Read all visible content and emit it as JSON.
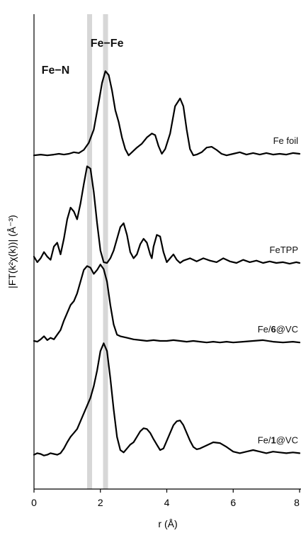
{
  "chart_data": {
    "type": "line",
    "xlabel": "r (Å)",
    "ylabel": "|FT(k²χ(k))| (Å⁻³)",
    "xlim": [
      0,
      8
    ],
    "xticks": [
      0,
      2,
      4,
      6,
      8
    ],
    "grid": false,
    "legend": "none",
    "bands": [
      {
        "x0": 1.6,
        "x1": 1.75
      },
      {
        "x0": 2.08,
        "x1": 2.23
      }
    ],
    "annotations": [
      {
        "text": "Fe−N",
        "x": 0.65
      },
      {
        "text": "Fe−Fe",
        "x": 2.2
      }
    ],
    "series": [
      {
        "name": "Fe foil",
        "offset": 4.26,
        "points": [
          [
            0.0,
            0.02
          ],
          [
            0.2,
            0.03
          ],
          [
            0.4,
            0.02
          ],
          [
            0.6,
            0.03
          ],
          [
            0.75,
            0.04
          ],
          [
            0.9,
            0.03
          ],
          [
            1.05,
            0.04
          ],
          [
            1.2,
            0.06
          ],
          [
            1.35,
            0.05
          ],
          [
            1.5,
            0.09
          ],
          [
            1.65,
            0.18
          ],
          [
            1.8,
            0.35
          ],
          [
            1.95,
            0.7
          ],
          [
            2.05,
            0.95
          ],
          [
            2.15,
            1.1
          ],
          [
            2.25,
            1.05
          ],
          [
            2.35,
            0.85
          ],
          [
            2.45,
            0.6
          ],
          [
            2.55,
            0.45
          ],
          [
            2.65,
            0.25
          ],
          [
            2.75,
            0.1
          ],
          [
            2.85,
            0.02
          ],
          [
            2.95,
            0.06
          ],
          [
            3.1,
            0.12
          ],
          [
            3.25,
            0.17
          ],
          [
            3.4,
            0.25
          ],
          [
            3.55,
            0.3
          ],
          [
            3.65,
            0.28
          ],
          [
            3.75,
            0.14
          ],
          [
            3.85,
            0.04
          ],
          [
            3.95,
            0.1
          ],
          [
            4.1,
            0.3
          ],
          [
            4.25,
            0.65
          ],
          [
            4.4,
            0.75
          ],
          [
            4.5,
            0.65
          ],
          [
            4.6,
            0.35
          ],
          [
            4.7,
            0.1
          ],
          [
            4.8,
            0.02
          ],
          [
            4.9,
            0.03
          ],
          [
            5.05,
            0.06
          ],
          [
            5.2,
            0.12
          ],
          [
            5.35,
            0.13
          ],
          [
            5.5,
            0.09
          ],
          [
            5.65,
            0.04
          ],
          [
            5.8,
            0.02
          ],
          [
            6.0,
            0.04
          ],
          [
            6.2,
            0.06
          ],
          [
            6.4,
            0.03
          ],
          [
            6.6,
            0.05
          ],
          [
            6.8,
            0.03
          ],
          [
            7.0,
            0.05
          ],
          [
            7.2,
            0.03
          ],
          [
            7.4,
            0.04
          ],
          [
            7.6,
            0.03
          ],
          [
            7.8,
            0.05
          ],
          [
            8.0,
            0.04
          ]
        ]
      },
      {
        "name": "FeTPP",
        "offset": 2.86,
        "points": [
          [
            0.0,
            0.12
          ],
          [
            0.1,
            0.05
          ],
          [
            0.2,
            0.1
          ],
          [
            0.3,
            0.18
          ],
          [
            0.4,
            0.12
          ],
          [
            0.5,
            0.08
          ],
          [
            0.6,
            0.25
          ],
          [
            0.7,
            0.3
          ],
          [
            0.8,
            0.15
          ],
          [
            0.9,
            0.35
          ],
          [
            1.0,
            0.6
          ],
          [
            1.1,
            0.75
          ],
          [
            1.2,
            0.7
          ],
          [
            1.3,
            0.6
          ],
          [
            1.4,
            0.8
          ],
          [
            1.5,
            1.05
          ],
          [
            1.6,
            1.28
          ],
          [
            1.7,
            1.25
          ],
          [
            1.8,
            0.95
          ],
          [
            1.9,
            0.55
          ],
          [
            2.0,
            0.2
          ],
          [
            2.1,
            0.05
          ],
          [
            2.2,
            0.04
          ],
          [
            2.3,
            0.1
          ],
          [
            2.4,
            0.2
          ],
          [
            2.5,
            0.35
          ],
          [
            2.6,
            0.5
          ],
          [
            2.7,
            0.55
          ],
          [
            2.8,
            0.4
          ],
          [
            2.9,
            0.18
          ],
          [
            3.0,
            0.1
          ],
          [
            3.1,
            0.15
          ],
          [
            3.2,
            0.28
          ],
          [
            3.3,
            0.35
          ],
          [
            3.4,
            0.3
          ],
          [
            3.5,
            0.15
          ],
          [
            3.55,
            0.1
          ],
          [
            3.6,
            0.25
          ],
          [
            3.7,
            0.4
          ],
          [
            3.8,
            0.38
          ],
          [
            3.9,
            0.18
          ],
          [
            4.0,
            0.05
          ],
          [
            4.1,
            0.1
          ],
          [
            4.2,
            0.15
          ],
          [
            4.3,
            0.08
          ],
          [
            4.4,
            0.04
          ],
          [
            4.5,
            0.07
          ],
          [
            4.7,
            0.1
          ],
          [
            4.9,
            0.06
          ],
          [
            5.1,
            0.1
          ],
          [
            5.3,
            0.07
          ],
          [
            5.5,
            0.05
          ],
          [
            5.7,
            0.1
          ],
          [
            5.9,
            0.06
          ],
          [
            6.1,
            0.04
          ],
          [
            6.3,
            0.08
          ],
          [
            6.5,
            0.05
          ],
          [
            6.7,
            0.07
          ],
          [
            6.9,
            0.04
          ],
          [
            7.1,
            0.06
          ],
          [
            7.3,
            0.04
          ],
          [
            7.5,
            0.05
          ],
          [
            7.7,
            0.03
          ],
          [
            7.9,
            0.05
          ],
          [
            8.0,
            0.04
          ]
        ]
      },
      {
        "name": "Fe/6@VC",
        "name_parts": [
          "Fe/",
          "6",
          "@VC"
        ],
        "offset": 1.86,
        "points": [
          [
            0.0,
            0.04
          ],
          [
            0.1,
            0.03
          ],
          [
            0.2,
            0.06
          ],
          [
            0.3,
            0.1
          ],
          [
            0.4,
            0.05
          ],
          [
            0.5,
            0.08
          ],
          [
            0.6,
            0.06
          ],
          [
            0.7,
            0.12
          ],
          [
            0.8,
            0.18
          ],
          [
            0.9,
            0.3
          ],
          [
            1.0,
            0.4
          ],
          [
            1.1,
            0.5
          ],
          [
            1.2,
            0.55
          ],
          [
            1.3,
            0.65
          ],
          [
            1.4,
            0.8
          ],
          [
            1.5,
            0.95
          ],
          [
            1.6,
            1.0
          ],
          [
            1.7,
            0.98
          ],
          [
            1.8,
            0.9
          ],
          [
            1.9,
            0.95
          ],
          [
            2.0,
            1.02
          ],
          [
            2.1,
            0.96
          ],
          [
            2.2,
            0.8
          ],
          [
            2.3,
            0.5
          ],
          [
            2.4,
            0.25
          ],
          [
            2.5,
            0.12
          ],
          [
            2.6,
            0.1
          ],
          [
            2.8,
            0.08
          ],
          [
            3.0,
            0.06
          ],
          [
            3.2,
            0.05
          ],
          [
            3.4,
            0.04
          ],
          [
            3.6,
            0.05
          ],
          [
            3.8,
            0.04
          ],
          [
            4.0,
            0.04
          ],
          [
            4.2,
            0.05
          ],
          [
            4.4,
            0.04
          ],
          [
            4.6,
            0.03
          ],
          [
            4.8,
            0.04
          ],
          [
            5.0,
            0.03
          ],
          [
            5.2,
            0.02
          ],
          [
            5.4,
            0.03
          ],
          [
            5.6,
            0.02
          ],
          [
            5.8,
            0.03
          ],
          [
            6.0,
            0.02
          ],
          [
            6.3,
            0.03
          ],
          [
            6.6,
            0.04
          ],
          [
            6.9,
            0.05
          ],
          [
            7.2,
            0.03
          ],
          [
            7.5,
            0.02
          ],
          [
            7.8,
            0.03
          ],
          [
            8.0,
            0.02
          ]
        ]
      },
      {
        "name": "Fe/1@VC",
        "name_parts": [
          "Fe/",
          "1",
          "@VC"
        ],
        "offset": 0.42,
        "points": [
          [
            0.0,
            0.02
          ],
          [
            0.1,
            0.04
          ],
          [
            0.2,
            0.03
          ],
          [
            0.3,
            0.01
          ],
          [
            0.4,
            0.02
          ],
          [
            0.5,
            0.04
          ],
          [
            0.6,
            0.03
          ],
          [
            0.7,
            0.02
          ],
          [
            0.8,
            0.04
          ],
          [
            0.9,
            0.1
          ],
          [
            1.0,
            0.18
          ],
          [
            1.1,
            0.25
          ],
          [
            1.2,
            0.3
          ],
          [
            1.3,
            0.35
          ],
          [
            1.4,
            0.45
          ],
          [
            1.5,
            0.55
          ],
          [
            1.6,
            0.65
          ],
          [
            1.7,
            0.75
          ],
          [
            1.8,
            0.9
          ],
          [
            1.9,
            1.1
          ],
          [
            2.0,
            1.35
          ],
          [
            2.1,
            1.45
          ],
          [
            2.2,
            1.35
          ],
          [
            2.3,
            1.0
          ],
          [
            2.4,
            0.6
          ],
          [
            2.5,
            0.25
          ],
          [
            2.6,
            0.08
          ],
          [
            2.7,
            0.05
          ],
          [
            2.8,
            0.1
          ],
          [
            2.9,
            0.15
          ],
          [
            3.0,
            0.18
          ],
          [
            3.1,
            0.25
          ],
          [
            3.2,
            0.32
          ],
          [
            3.3,
            0.36
          ],
          [
            3.4,
            0.35
          ],
          [
            3.5,
            0.3
          ],
          [
            3.6,
            0.22
          ],
          [
            3.7,
            0.15
          ],
          [
            3.8,
            0.08
          ],
          [
            3.9,
            0.1
          ],
          [
            4.0,
            0.2
          ],
          [
            4.1,
            0.3
          ],
          [
            4.2,
            0.4
          ],
          [
            4.3,
            0.45
          ],
          [
            4.4,
            0.46
          ],
          [
            4.5,
            0.4
          ],
          [
            4.6,
            0.3
          ],
          [
            4.7,
            0.2
          ],
          [
            4.8,
            0.12
          ],
          [
            4.9,
            0.09
          ],
          [
            5.0,
            0.1
          ],
          [
            5.2,
            0.14
          ],
          [
            5.4,
            0.18
          ],
          [
            5.6,
            0.17
          ],
          [
            5.8,
            0.12
          ],
          [
            6.0,
            0.06
          ],
          [
            6.2,
            0.04
          ],
          [
            6.4,
            0.06
          ],
          [
            6.6,
            0.08
          ],
          [
            6.8,
            0.06
          ],
          [
            7.0,
            0.04
          ],
          [
            7.2,
            0.06
          ],
          [
            7.4,
            0.05
          ],
          [
            7.6,
            0.04
          ],
          [
            7.8,
            0.05
          ],
          [
            8.0,
            0.04
          ]
        ]
      }
    ]
  }
}
